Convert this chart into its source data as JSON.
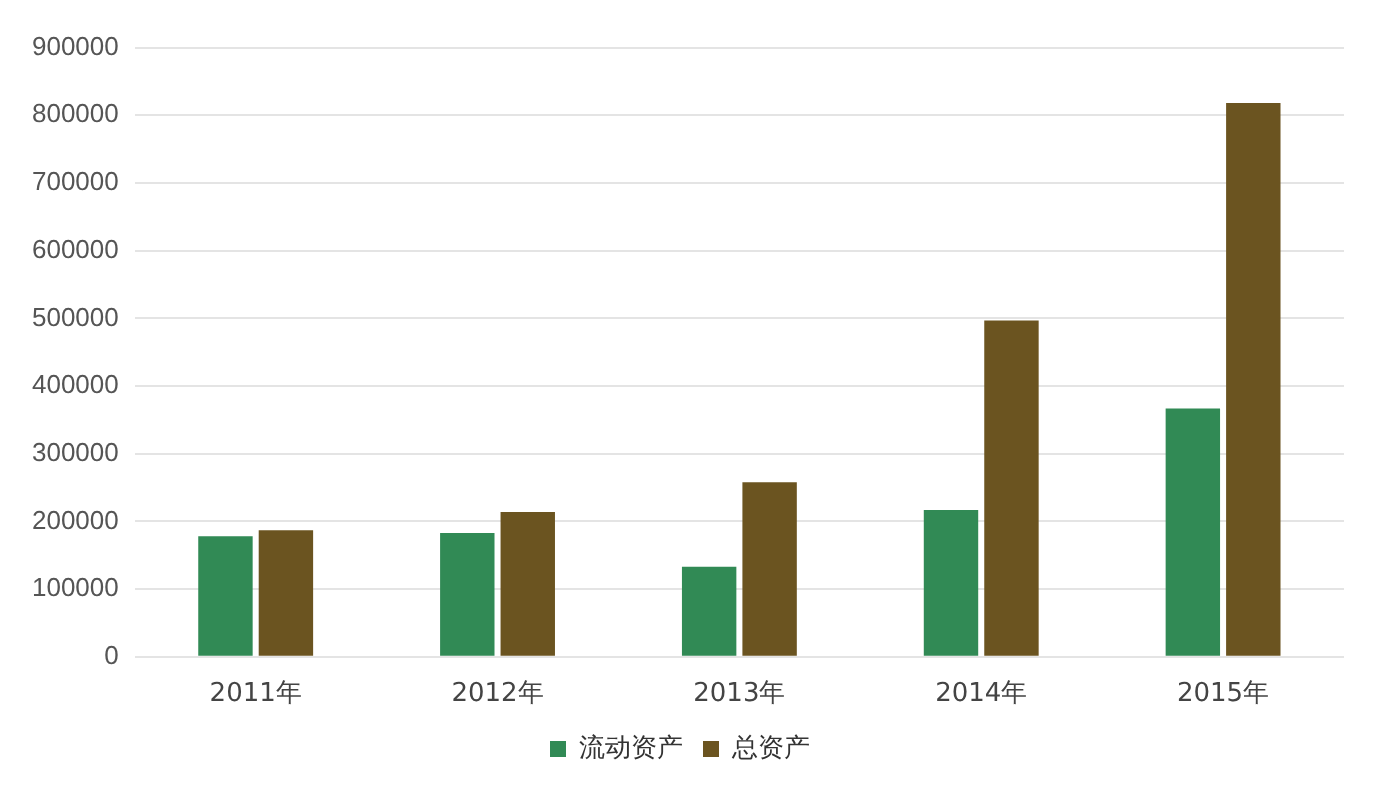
{
  "chart_data": {
    "type": "bar",
    "categories": [
      "2011年",
      "2012年",
      "2013年",
      "2014年",
      "2015年"
    ],
    "series": [
      {
        "name": "流动资产",
        "color": "#318a55",
        "values": [
          178000,
          183000,
          133000,
          217000,
          367000
        ]
      },
      {
        "name": "总资产",
        "color": "#6b5420",
        "values": [
          187000,
          214000,
          258000,
          497000,
          818000
        ]
      }
    ],
    "ylim": [
      0,
      900000
    ],
    "yticks": [
      0,
      100000,
      200000,
      300000,
      400000,
      500000,
      600000,
      700000,
      800000,
      900000
    ],
    "grid": "y",
    "legend": "bottom"
  }
}
